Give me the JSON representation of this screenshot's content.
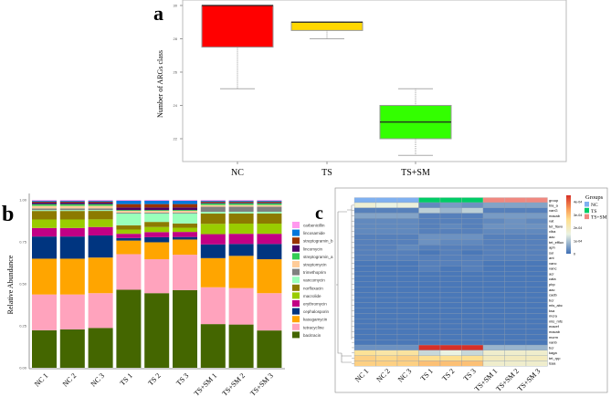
{
  "panel_labels": {
    "a": "a",
    "b": "b",
    "c": "c"
  },
  "chart_data": [
    {
      "type": "box",
      "panel": "a",
      "title": "",
      "xlabel": "",
      "ylabel": "Number of ARGs class",
      "categories": [
        "NC",
        "TS",
        "TS+SM"
      ],
      "yticks": [
        22,
        24,
        26,
        28,
        30
      ],
      "ylim": [
        20.7,
        30
      ],
      "boxes": [
        {
          "name": "NC",
          "color": "#ff0000",
          "min": 25,
          "q1": 27.5,
          "median": 30,
          "q3": 30,
          "max": 30
        },
        {
          "name": "TS",
          "color": "#ffd700",
          "min": 28,
          "q1": 28.5,
          "median": 29,
          "q3": 29,
          "max": 29
        },
        {
          "name": "TS+SM",
          "color": "#33ff00",
          "min": 21,
          "q1": 22,
          "median": 23,
          "q3": 24,
          "max": 25
        }
      ]
    },
    {
      "type": "bar",
      "stacked": true,
      "panel": "b",
      "ylabel": "Relative Abundance",
      "xlabel": "",
      "ylim": [
        0,
        1
      ],
      "yticks": [
        "0.00",
        "0.25",
        "0.50",
        "0.75",
        "1.00"
      ],
      "categories": [
        "NC 1",
        "NC 2",
        "NC 3",
        "TS 1",
        "TS 2",
        "TS 3",
        "TS+SM 1",
        "TS+SM 2",
        "TS+SM 3"
      ],
      "legend_position": "right",
      "series": [
        {
          "name": "bacitracin",
          "color": "#446600",
          "values": [
            0.22,
            0.225,
            0.235,
            0.46,
            0.44,
            0.46,
            0.255,
            0.255,
            0.22
          ]
        },
        {
          "name": "tetracycline",
          "color": "#ffa3bd",
          "values": [
            0.21,
            0.205,
            0.205,
            0.21,
            0.2,
            0.21,
            0.215,
            0.215,
            0.22
          ]
        },
        {
          "name": "kasugamycin",
          "color": "#ffa500",
          "values": [
            0.21,
            0.21,
            0.21,
            0.08,
            0.1,
            0.09,
            0.17,
            0.19,
            0.2
          ]
        },
        {
          "name": "cephalosporin",
          "color": "#003580",
          "values": [
            0.13,
            0.13,
            0.13,
            0.015,
            0.03,
            0.015,
            0.08,
            0.07,
            0.09
          ]
        },
        {
          "name": "erythromycin",
          "color": "#c20085",
          "values": [
            0.05,
            0.05,
            0.05,
            0.025,
            0.03,
            0.03,
            0.06,
            0.06,
            0.06
          ]
        },
        {
          "name": "macrolide",
          "color": "#99cc00",
          "values": [
            0.05,
            0.05,
            0.045,
            0.025,
            0.03,
            0.025,
            0.06,
            0.06,
            0.06
          ]
        },
        {
          "name": "norfloxacin",
          "color": "#8c7a00",
          "values": [
            0.05,
            0.05,
            0.05,
            0.025,
            0.03,
            0.025,
            0.06,
            0.06,
            0.06
          ]
        },
        {
          "name": "vancomycin",
          "color": "#99ffbb",
          "values": [
            0.005,
            0.005,
            0.005,
            0.07,
            0.05,
            0.06,
            0.01,
            0.01,
            0.01
          ]
        },
        {
          "name": "trimethoprim",
          "color": "#808080",
          "values": [
            0.01,
            0.01,
            0.01,
            0.005,
            0.005,
            0.005,
            0.03,
            0.03,
            0.03
          ]
        },
        {
          "name": "streptomycin",
          "color": "#ffcc99",
          "values": [
            0.015,
            0.015,
            0.015,
            0.01,
            0.01,
            0.01,
            0.01,
            0.01,
            0.01
          ]
        },
        {
          "name": "streptogramin_a",
          "color": "#33cc55",
          "values": [
            0.01,
            0.01,
            0.01,
            0.005,
            0.005,
            0.005,
            0.01,
            0.01,
            0.01
          ]
        },
        {
          "name": "lincomycin",
          "color": "#4d0066",
          "values": [
            0.01,
            0.01,
            0.01,
            0.015,
            0.015,
            0.015,
            0.005,
            0.005,
            0.005
          ]
        },
        {
          "name": "streptogramin_b",
          "color": "#993300",
          "values": [
            0.005,
            0.005,
            0.005,
            0.02,
            0.02,
            0.02,
            0.005,
            0.005,
            0.005
          ]
        },
        {
          "name": "lincosamide",
          "color": "#0077dd",
          "values": [
            0.005,
            0.005,
            0.005,
            0.02,
            0.02,
            0.02,
            0.005,
            0.005,
            0.005
          ]
        },
        {
          "name": "carbenicillin",
          "color": "#ff99ee",
          "values": [
            0.005,
            0.005,
            0.005,
            0.005,
            0.005,
            0.005,
            0.005,
            0.005,
            0.005
          ]
        }
      ]
    },
    {
      "type": "heatmap",
      "panel": "c",
      "columns": [
        "NC 1",
        "NC 2",
        "NC 3",
        "TS 1",
        "TS 2",
        "TS 3",
        "TS+SM 1",
        "TS+SM 2",
        "TS+SM 3"
      ],
      "group_row_label": "group",
      "groups": [
        {
          "name": "NC",
          "color": "#7fb0f0"
        },
        {
          "name": "TS",
          "color": "#00cc66"
        },
        {
          "name": "TS+SM",
          "color": "#f08880"
        }
      ],
      "column_groups": [
        "NC",
        "NC",
        "NC",
        "TS",
        "TS",
        "TS",
        "TS+SM",
        "TS+SM",
        "TS+SM"
      ],
      "legend_title": "Groups",
      "colorbar_ticks": [
        "0",
        "1e-04",
        "2e-04",
        "3e-04",
        "4e-04"
      ],
      "value_unit": "1e-04",
      "rows": [
        {
          "label": "bla_a",
          "values": [
            1.7,
            1.5,
            1.6,
            0.3,
            0.5,
            0.4,
            0.6,
            0.6,
            0.6
          ]
        },
        {
          "label": "vanG",
          "values": [
            0.2,
            0.2,
            0.2,
            1.1,
            0.8,
            1.1,
            0.2,
            0.2,
            0.2
          ]
        },
        {
          "label": "macab",
          "values": [
            0.6,
            0.6,
            0.6,
            0.2,
            0.2,
            0.2,
            0.5,
            0.5,
            0.5
          ]
        },
        {
          "label": "vat",
          "values": [
            0.3,
            0.3,
            0.3,
            0.2,
            0.2,
            0.2,
            0.3,
            0.4,
            0.3
          ]
        },
        {
          "label": "tet_flavo",
          "values": [
            0.3,
            0.3,
            0.3,
            0.2,
            0.3,
            0.2,
            0.4,
            0.4,
            0.4
          ]
        },
        {
          "label": "vlba",
          "values": [
            0.3,
            0.3,
            0.3,
            0.2,
            0.2,
            0.2,
            0.3,
            0.3,
            0.3
          ]
        },
        {
          "label": "aac",
          "values": [
            0.2,
            0.2,
            0.2,
            0.4,
            0.4,
            0.4,
            0.2,
            0.2,
            0.2
          ]
        },
        {
          "label": "tet_efflux",
          "values": [
            0.2,
            0.2,
            0.2,
            0.4,
            0.3,
            0.3,
            0.2,
            0.2,
            0.2
          ]
        },
        {
          "label": "aph",
          "values": [
            0.2,
            0.2,
            0.3,
            0.2,
            0.2,
            0.2,
            0.2,
            0.2,
            0.2
          ]
        },
        {
          "label": "sul",
          "values": [
            0.2,
            0.2,
            0.2,
            0.1,
            0.2,
            0.1,
            0.2,
            0.2,
            0.2
          ]
        },
        {
          "label": "ant",
          "values": [
            0.2,
            0.2,
            0.2,
            0.2,
            0.2,
            0.2,
            0.2,
            0.2,
            0.2
          ]
        },
        {
          "label": "vanc",
          "values": [
            0.1,
            0.1,
            0.1,
            0.2,
            0.2,
            0.2,
            0.1,
            0.1,
            0.1
          ]
        },
        {
          "label": "vanc",
          "values": [
            0.1,
            0.1,
            0.1,
            0.2,
            0.1,
            0.2,
            0.1,
            0.1,
            0.1
          ]
        },
        {
          "label": "acr",
          "values": [
            0.1,
            0.1,
            0.1,
            0.1,
            0.1,
            0.1,
            0.1,
            0.1,
            0.1
          ]
        },
        {
          "label": "cata",
          "values": [
            0.1,
            0.1,
            0.1,
            0.1,
            0.1,
            0.1,
            0.1,
            0.1,
            0.1
          ]
        },
        {
          "label": "pbp",
          "values": [
            0.1,
            0.1,
            0.1,
            0.1,
            0.1,
            0.1,
            0.1,
            0.1,
            0.1
          ]
        },
        {
          "label": "aac",
          "values": [
            0.1,
            0.1,
            0.1,
            0.1,
            0.1,
            0.1,
            0.1,
            0.1,
            0.1
          ]
        },
        {
          "label": "cadb",
          "values": [
            0.1,
            0.1,
            0.1,
            0.1,
            0.1,
            0.1,
            0.1,
            0.1,
            0.1
          ]
        },
        {
          "label": "bcr",
          "values": [
            0.1,
            0.1,
            0.1,
            0.1,
            0.1,
            0.1,
            0.1,
            0.1,
            0.1
          ]
        },
        {
          "label": "mls_abc",
          "values": [
            0.1,
            0.1,
            0.1,
            0.1,
            0.1,
            0.1,
            0.1,
            0.1,
            0.1
          ]
        },
        {
          "label": "ksa",
          "values": [
            0.1,
            0.1,
            0.1,
            0.1,
            0.1,
            0.1,
            0.1,
            0.1,
            0.1
          ]
        },
        {
          "label": "mcra",
          "values": [
            0.1,
            0.1,
            0.1,
            0.1,
            0.1,
            0.1,
            0.1,
            0.1,
            0.1
          ]
        },
        {
          "label": "mls_mfs",
          "values": [
            0.1,
            0.1,
            0.1,
            0.1,
            0.1,
            0.1,
            0.1,
            0.1,
            0.1
          ]
        },
        {
          "label": "macef",
          "values": [
            0.1,
            0.1,
            0.1,
            0.1,
            0.1,
            0.1,
            0.1,
            0.1,
            0.1
          ]
        },
        {
          "label": "macab",
          "values": [
            0.1,
            0.1,
            0.1,
            0.1,
            0.1,
            0.1,
            0.1,
            0.1,
            0.1
          ]
        },
        {
          "label": "mcrm",
          "values": [
            0.1,
            0.1,
            0.1,
            0.1,
            0.1,
            0.1,
            0.1,
            0.1,
            0.1
          ]
        },
        {
          "label": "vanb",
          "values": [
            0.1,
            0.1,
            0.1,
            0.1,
            0.1,
            0.1,
            0.1,
            0.1,
            0.1
          ]
        },
        {
          "label": "bcr",
          "values": [
            0.4,
            0.4,
            0.4,
            4.5,
            4.5,
            4.5,
            0.8,
            0.8,
            0.8
          ]
        },
        {
          "label": "kaga",
          "values": [
            2.5,
            2.3,
            2.4,
            1.2,
            1.5,
            1.2,
            1.8,
            1.8,
            1.8
          ]
        },
        {
          "label": "tet_rpp",
          "values": [
            2.8,
            2.7,
            2.8,
            2.6,
            2.6,
            2.6,
            2.0,
            2.0,
            2.0
          ]
        },
        {
          "label": "lsaa",
          "values": [
            2.8,
            2.8,
            2.8,
            3.0,
            3.0,
            3.0,
            1.8,
            1.8,
            1.8
          ]
        }
      ]
    }
  ]
}
